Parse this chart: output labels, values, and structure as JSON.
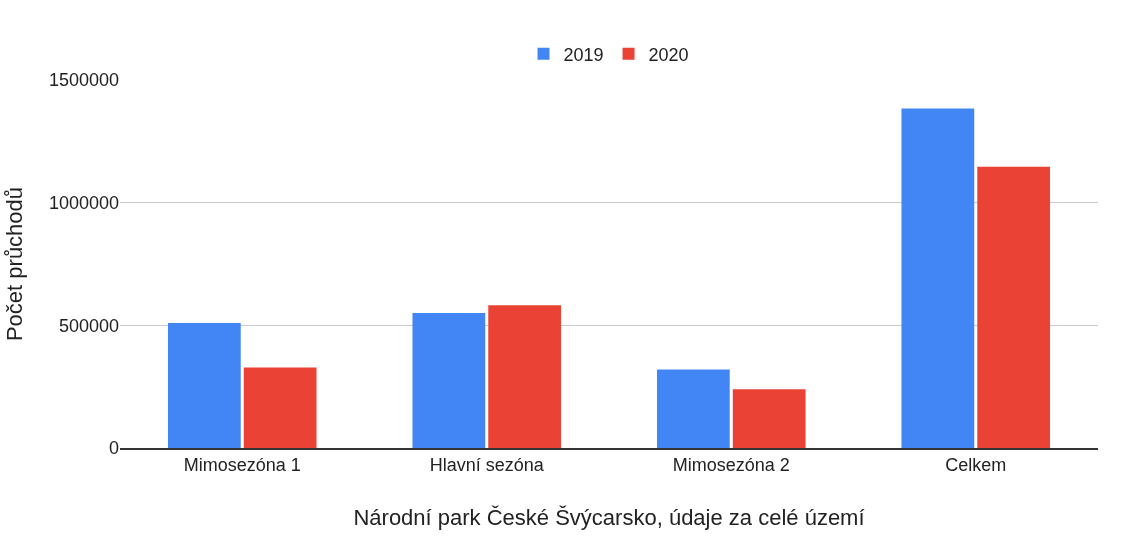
{
  "chart_data": {
    "type": "bar",
    "xlabel": "Národní park České Švýcarsko, údaje za celé území",
    "ylabel": "Počet průchodů",
    "categories": [
      "Mimosezóna 1",
      "Hlavní sezóna",
      "Mimosezóna 2",
      "Celkem"
    ],
    "series": [
      {
        "name": "2019",
        "color": "#4285f4",
        "values": [
          510000,
          550000,
          320000,
          1384000
        ]
      },
      {
        "name": "2020",
        "color": "#ea4335",
        "values": [
          328000,
          582000,
          239000,
          1146000
        ]
      }
    ],
    "ylim": [
      0,
      1500000
    ],
    "yticks": [
      0,
      500000,
      1000000,
      1500000
    ],
    "grid": "y",
    "legend": "top"
  }
}
